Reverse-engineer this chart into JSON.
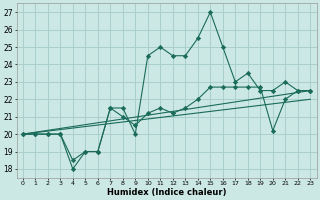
{
  "xlabel": "Humidex (Indice chaleur)",
  "background_color": "#cce8e4",
  "grid_color": "#aacfcb",
  "line_color": "#1a6b5a",
  "xlim": [
    -0.5,
    23.5
  ],
  "ylim": [
    17.5,
    27.5
  ],
  "xticks": [
    0,
    1,
    2,
    3,
    4,
    5,
    6,
    7,
    8,
    9,
    10,
    11,
    12,
    13,
    14,
    15,
    16,
    17,
    18,
    19,
    20,
    21,
    22,
    23
  ],
  "yticks": [
    18,
    19,
    20,
    21,
    22,
    23,
    24,
    25,
    26,
    27
  ],
  "series1_x": [
    0,
    1,
    2,
    3,
    4,
    5,
    6,
    7,
    8,
    9,
    10,
    11,
    12,
    13,
    14,
    15,
    16,
    17,
    18,
    19,
    20,
    21,
    22,
    23
  ],
  "series1_y": [
    20,
    20,
    20,
    20,
    18,
    19,
    19,
    21.5,
    21.5,
    20,
    24.5,
    25,
    24.5,
    24.5,
    25.5,
    27,
    25,
    23,
    23.5,
    22.5,
    22.5,
    23,
    22.5,
    22.5
  ],
  "series2_x": [
    0,
    1,
    2,
    3,
    4,
    5,
    6,
    7,
    8,
    9,
    10,
    11,
    12,
    13,
    14,
    15,
    16,
    17,
    18,
    19,
    20,
    21,
    22,
    23
  ],
  "series2_y": [
    20,
    20,
    20,
    20,
    18.5,
    19,
    19,
    21.5,
    21,
    20.5,
    21.2,
    21.5,
    21.2,
    21.5,
    22,
    22.7,
    22.7,
    22.7,
    22.7,
    22.7,
    20.2,
    22,
    22.5,
    22.5
  ],
  "series3_x": [
    0,
    23
  ],
  "series3_y": [
    20,
    22.5
  ],
  "series4_x": [
    0,
    23
  ],
  "series4_y": [
    20,
    22.0
  ]
}
